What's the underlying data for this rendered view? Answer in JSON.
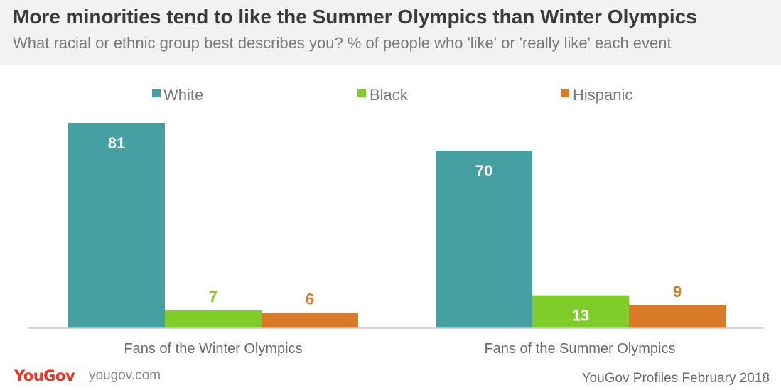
{
  "header": {
    "title": "More minorities tend to like the Summer Olympics than Winter Olympics",
    "subtitle": "What racial or ethnic group best describes you? % of people who 'like' or  'really like' each event"
  },
  "footer": {
    "logo": "YouGov",
    "site": "yougov.com",
    "source": "YouGov Profiles February 2018"
  },
  "chart_data": {
    "type": "bar",
    "categories": [
      "Fans of the Winter Olympics",
      "Fans of the Summer Olympics"
    ],
    "series": [
      {
        "name": "White",
        "values": [
          81,
          70
        ],
        "color": "#46a0a3"
      },
      {
        "name": "Black",
        "values": [
          7,
          13
        ],
        "color": "#80cc29"
      },
      {
        "name": "Hispanic",
        "values": [
          6,
          9
        ],
        "color": "#d97a26"
      }
    ],
    "ylim": [
      0,
      81
    ],
    "grid": false,
    "legend": "top-center"
  }
}
